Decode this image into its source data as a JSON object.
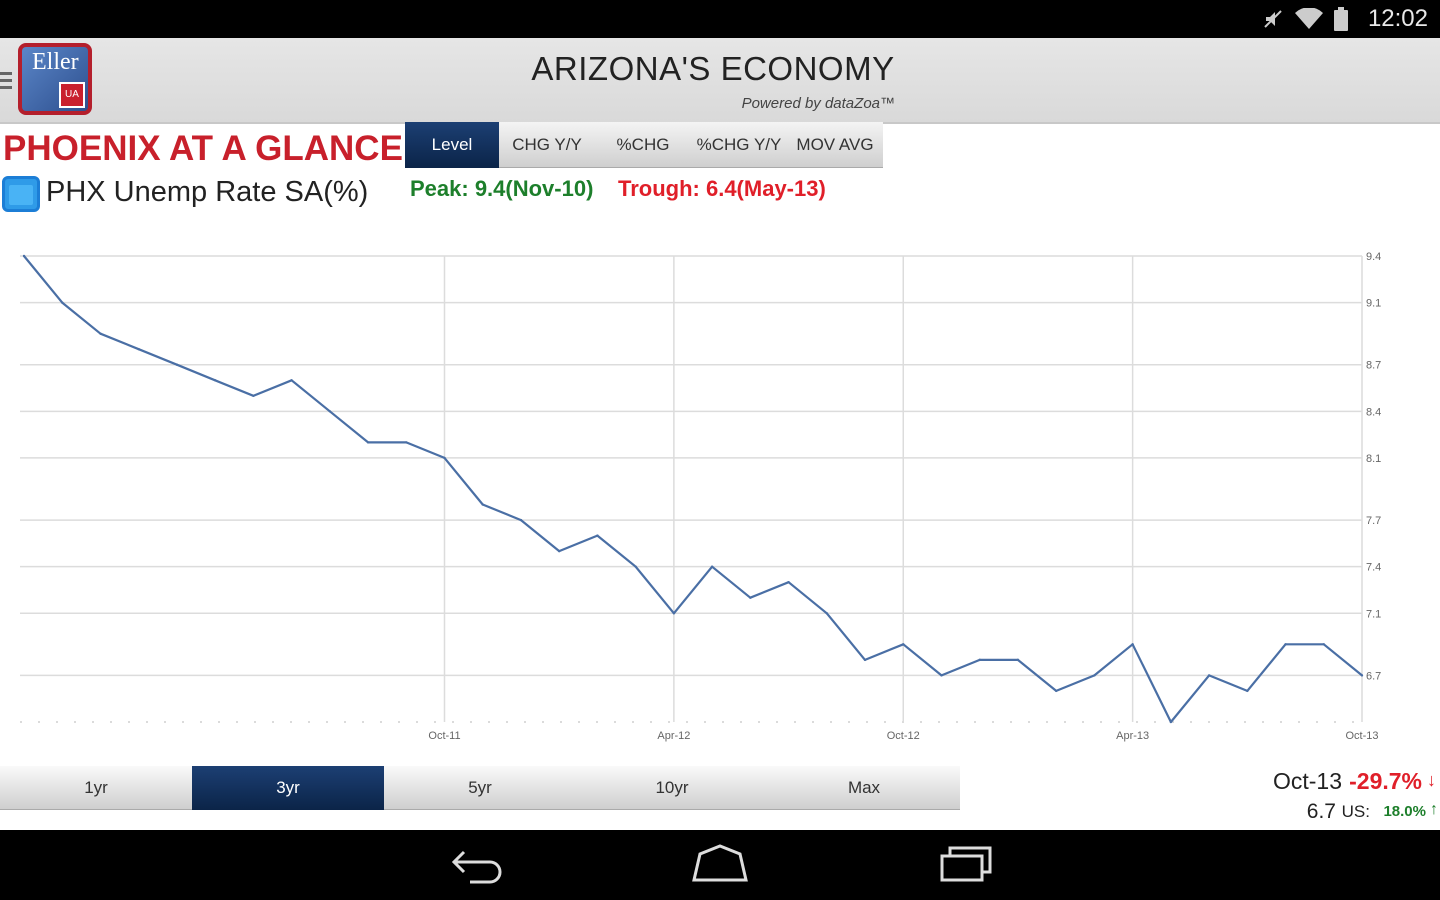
{
  "status": {
    "time": "12:02"
  },
  "app": {
    "title": "ARIZONA'S ECONOMY",
    "powered_by": "Powered by dataZoa™",
    "logo_text": "Eller",
    "logo_badge": "UA"
  },
  "page_title": "PHOENIX AT A GLANCE",
  "view_tabs": [
    {
      "label": "Level",
      "active": true
    },
    {
      "label": "CHG Y/Y",
      "active": false
    },
    {
      "label": "%CHG",
      "active": false
    },
    {
      "label": "%CHG Y/Y",
      "active": false
    },
    {
      "label": "MOV AVG",
      "active": false
    }
  ],
  "series": {
    "name": "PHX Unemp Rate SA(%)",
    "peak": "Peak: 9.4(Nov-10)",
    "trough": "Trough: 6.4(May-13)"
  },
  "range_tabs": [
    {
      "label": "1yr",
      "active": false
    },
    {
      "label": "3yr",
      "active": true
    },
    {
      "label": "5yr",
      "active": false
    },
    {
      "label": "10yr",
      "active": false
    },
    {
      "label": "Max",
      "active": false
    }
  ],
  "latest": {
    "date": "Oct-13",
    "change": "-29.7%",
    "value": "6.7",
    "us_label": "US:",
    "us_change": "18.0%"
  },
  "colors": {
    "line": "#4a6fa5",
    "peak": "#1d7f2b",
    "trough": "#e01f29",
    "brand_red": "#c8202b",
    "active_tab": "#0b2448"
  },
  "chart_data": {
    "type": "line",
    "title": "",
    "xlabel": "",
    "ylabel": "",
    "x": [
      "Nov-10",
      "Dec-10",
      "Jan-11",
      "Feb-11",
      "Mar-11",
      "Apr-11",
      "May-11",
      "Jun-11",
      "Jul-11",
      "Aug-11",
      "Sep-11",
      "Oct-11",
      "Nov-11",
      "Dec-11",
      "Jan-12",
      "Feb-12",
      "Mar-12",
      "Apr-12",
      "May-12",
      "Jun-12",
      "Jul-12",
      "Aug-12",
      "Sep-12",
      "Oct-12",
      "Nov-12",
      "Dec-12",
      "Jan-13",
      "Feb-13",
      "Mar-13",
      "Apr-13",
      "May-13",
      "Jun-13",
      "Jul-13",
      "Aug-13",
      "Sep-13",
      "Oct-13"
    ],
    "x_ticks": [
      "Oct-11",
      "Apr-12",
      "Oct-12",
      "Apr-13",
      "Oct-13"
    ],
    "series": [
      {
        "values": [
          9.4,
          9.1,
          8.9,
          8.8,
          8.7,
          8.6,
          8.5,
          8.6,
          8.4,
          8.2,
          8.2,
          8.1,
          7.8,
          7.7,
          7.5,
          7.6,
          7.4,
          7.1,
          7.4,
          7.2,
          7.3,
          7.1,
          6.8,
          6.9,
          6.7,
          6.8,
          6.8,
          6.6,
          6.7,
          6.9,
          6.4,
          6.7,
          6.6,
          6.9,
          6.9,
          6.7
        ]
      }
    ],
    "y_ticks": [
      9.4,
      9.1,
      8.7,
      8.4,
      8.1,
      7.7,
      7.4,
      7.1,
      6.7
    ],
    "ylim": [
      6.4,
      9.4
    ],
    "grid": true
  }
}
